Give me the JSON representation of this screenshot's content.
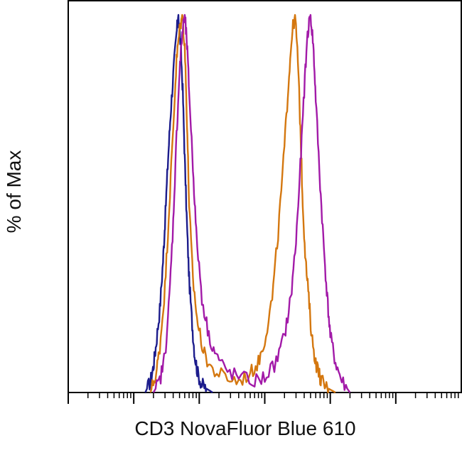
{
  "chart_data": {
    "type": "line",
    "title": "",
    "xlabel": "CD3 NovaFluor Blue 610",
    "ylabel": "% of Max",
    "xscale": "log",
    "xlim": [
      1,
      1000000
    ],
    "ylim": [
      0,
      100
    ],
    "grid": false,
    "legend": "none",
    "colors": {
      "frame": "#000000",
      "blue": "#1c1c8c",
      "orange": "#d4770f",
      "magenta": "#a21aa8"
    },
    "series": [
      {
        "color": "#1c1c8c",
        "x": [
          15,
          18,
          20,
          22,
          25,
          28,
          30,
          33,
          36,
          40,
          45,
          48,
          52,
          56,
          60,
          65,
          70,
          78,
          85,
          95,
          110,
          130,
          160
        ],
        "y": [
          0,
          3,
          7,
          13,
          22,
          35,
          45,
          60,
          72,
          84,
          95,
          100,
          92,
          80,
          62,
          44,
          30,
          18,
          10,
          5,
          2,
          1,
          0
        ]
      },
      {
        "color": "#d4770f",
        "x": [
          18,
          22,
          25,
          30,
          35,
          40,
          45,
          50,
          55,
          60,
          65,
          70,
          80,
          95,
          120,
          160,
          250,
          400,
          600,
          800,
          1000,
          1300,
          1600,
          2000,
          2300,
          2600,
          2900,
          3200,
          3500,
          3800,
          4200,
          4700,
          5200,
          6000,
          7000,
          8000,
          9500,
          12000
        ],
        "y": [
          0,
          5,
          12,
          28,
          50,
          70,
          88,
          96,
          100,
          92,
          72,
          50,
          30,
          18,
          10,
          6,
          4,
          3,
          5,
          8,
          14,
          25,
          42,
          65,
          82,
          95,
          100,
          88,
          70,
          50,
          35,
          25,
          15,
          8,
          4,
          2,
          1,
          0
        ]
      },
      {
        "color": "#a21aa8",
        "x": [
          20,
          25,
          30,
          35,
          40,
          45,
          50,
          55,
          60,
          65,
          70,
          80,
          90,
          110,
          140,
          180,
          250,
          400,
          700,
          1000,
          1500,
          2000,
          2500,
          3000,
          3500,
          4000,
          4500,
          5000,
          5500,
          6000,
          7000,
          8000,
          9000,
          10000,
          12000,
          15000,
          20000
        ],
        "y": [
          0,
          3,
          10,
          25,
          45,
          68,
          85,
          95,
          100,
          92,
          80,
          60,
          42,
          25,
          15,
          10,
          6,
          4,
          3,
          4,
          8,
          15,
          25,
          40,
          60,
          80,
          95,
          100,
          92,
          78,
          55,
          38,
          25,
          15,
          8,
          3,
          0
        ]
      }
    ]
  }
}
